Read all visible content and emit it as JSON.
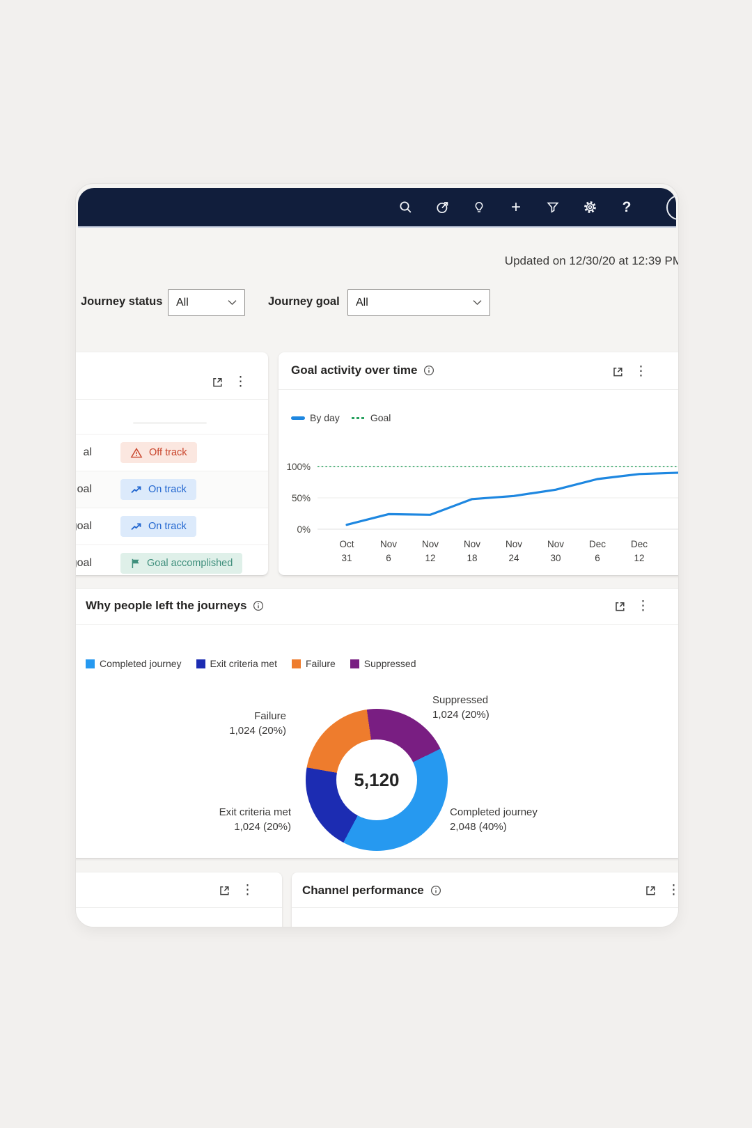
{
  "navbar": {
    "background_color": "#111e3c",
    "icons": [
      "search-icon",
      "compass-arrow-icon",
      "lightbulb-icon",
      "add-icon",
      "filter-icon",
      "settings-gear-icon",
      "help-icon",
      "avatar-circle"
    ],
    "add_glyph": "+",
    "help_glyph": "?",
    "more_glyph": "⋮"
  },
  "header": {
    "updated_text": "Updated on 12/30/20 at 12:39 PM"
  },
  "filters": {
    "journey_status": {
      "label": "Journey status",
      "value": "All"
    },
    "journey_goal": {
      "label": "Journey goal",
      "value": "All"
    }
  },
  "goal_list_card": {
    "rows": [
      {
        "label_fragment": "al",
        "status": "Off track",
        "type": "off-track"
      },
      {
        "label_fragment": "oal",
        "status": "On track",
        "type": "on-track"
      },
      {
        "label_fragment": "goal",
        "status": "On track",
        "type": "on-track"
      },
      {
        "label_fragment": "goal",
        "status": "Goal accomplished",
        "type": "goal-accomplished"
      }
    ],
    "status_colors": {
      "off-track": {
        "background": "#fbe7e0",
        "text": "#c8432a"
      },
      "on-track": {
        "background": "#dceafb",
        "text": "#2065cf"
      },
      "goal-accomplished": {
        "background": "#dff0e9",
        "text": "#3f8f7c"
      }
    }
  },
  "goal_activity_card": {
    "title": "Goal activity over time"
  },
  "reasons_card": {
    "title": "Why people left the journeys"
  },
  "channel_card": {
    "title": "Channel performance"
  },
  "chart_data": [
    {
      "type": "line",
      "title": "Goal activity over time",
      "categories": [
        [
          "Oct",
          "31"
        ],
        [
          "Nov",
          "6"
        ],
        [
          "Nov",
          "12"
        ],
        [
          "Nov",
          "18"
        ],
        [
          "Nov",
          "24"
        ],
        [
          "Nov",
          "30"
        ],
        [
          "Dec",
          "6"
        ],
        [
          "Dec",
          "12"
        ]
      ],
      "series": [
        {
          "name": "By day",
          "style": "solid",
          "color": "#1e87e0",
          "values": [
            7,
            24,
            23,
            48,
            53,
            63,
            80,
            88
          ],
          "edge_value": 91
        },
        {
          "name": "Goal",
          "style": "dashed",
          "color": "#28a15f",
          "values": [
            100,
            100,
            100,
            100,
            100,
            100,
            100,
            100
          ]
        }
      ],
      "ylim": [
        0,
        100
      ],
      "yticks": [
        {
          "label": "100%",
          "value": 100
        },
        {
          "label": "50%",
          "value": 50
        },
        {
          "label": "0%",
          "value": 0
        }
      ],
      "grid": true,
      "legend_position": "top-left"
    },
    {
      "type": "donut",
      "title": "Why people left the journeys",
      "total_label": "5,120",
      "start_angle_deg": -8,
      "segments": [
        {
          "label": "Suppressed",
          "value": 1024,
          "value_label": "1,024 (20%)",
          "color": "#791e82"
        },
        {
          "label": "Completed journey",
          "value": 2048,
          "value_label": "2,048 (40%)",
          "color": "#2699f0"
        },
        {
          "label": "Exit criteria met",
          "value": 1024,
          "value_label": "1,024 (20%)",
          "color": "#1c2cb2"
        },
        {
          "label": "Failure",
          "value": 1024,
          "value_label": "1,024 (20%)",
          "color": "#ee7c2d"
        }
      ],
      "legend_items": [
        {
          "label": "Completed journey",
          "color": "#2699f0"
        },
        {
          "label": "Exit criteria met",
          "color": "#1c2cb2"
        },
        {
          "label": "Failure",
          "color": "#ee7c2d"
        },
        {
          "label": "Suppressed",
          "color": "#791e82"
        }
      ]
    }
  ]
}
